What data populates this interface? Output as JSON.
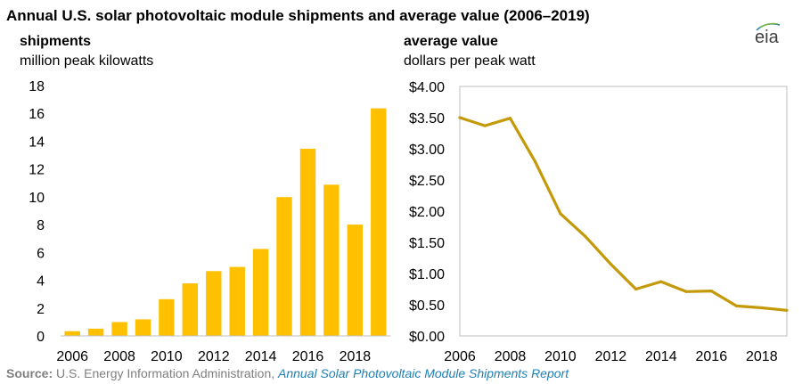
{
  "title": "Annual U.S. solar photovoltaic module shipments and average value (2006–2019)",
  "logo_text": "eia",
  "left_panel": {
    "heading": "shipments",
    "unit": "million peak kilowatts"
  },
  "right_panel": {
    "heading": "average value",
    "unit": "dollars per peak watt"
  },
  "source": {
    "label": "Source:",
    "text": " U.S. Energy Information Administration, ",
    "link_text": "Annual Solar Photovoltaic Module Shipments Report"
  },
  "colors": {
    "bar": "#FFC000",
    "line": "#C49A0A",
    "frame": "#bfbfbf",
    "source_link": "#1F7FB4"
  },
  "chart_data": [
    {
      "type": "bar",
      "x": [
        2006,
        2007,
        2008,
        2009,
        2010,
        2011,
        2012,
        2013,
        2014,
        2015,
        2016,
        2017,
        2018,
        2019
      ],
      "values": [
        0.34,
        0.52,
        0.99,
        1.19,
        2.64,
        3.77,
        4.66,
        4.96,
        6.25,
        9.98,
        13.46,
        10.87,
        8.0,
        16.36
      ],
      "ylim": [
        0,
        18
      ],
      "yticks": [
        "0",
        "2",
        "4",
        "6",
        "8",
        "10",
        "12",
        "14",
        "16",
        "18"
      ],
      "xticks": [
        "2006",
        "2008",
        "2010",
        "2012",
        "2014",
        "2016",
        "2018"
      ],
      "title": "shipments",
      "ylabel": "million peak kilowatts",
      "grid": false
    },
    {
      "type": "line",
      "x": [
        2006,
        2007,
        2008,
        2009,
        2010,
        2011,
        2012,
        2013,
        2014,
        2015,
        2016,
        2017,
        2018,
        2019
      ],
      "values": [
        3.5,
        3.37,
        3.49,
        2.79,
        1.96,
        1.59,
        1.15,
        0.75,
        0.87,
        0.71,
        0.72,
        0.48,
        0.45,
        0.41
      ],
      "xlim": [
        2006,
        2019
      ],
      "ylim": [
        0,
        4
      ],
      "yticks": [
        "$0.00",
        "$0.50",
        "$1.00",
        "$1.50",
        "$2.00",
        "$2.50",
        "$3.00",
        "$3.50",
        "$4.00"
      ],
      "xticks": [
        "2006",
        "2008",
        "2010",
        "2012",
        "2014",
        "2016",
        "2018"
      ],
      "title": "average value",
      "ylabel": "dollars per peak watt",
      "grid": false
    }
  ]
}
